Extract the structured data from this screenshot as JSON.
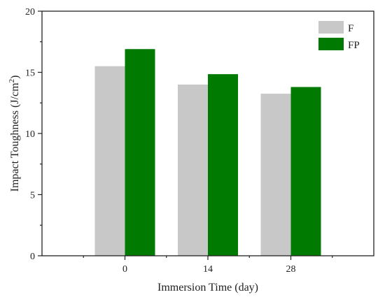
{
  "chart_data": {
    "type": "bar",
    "categories": [
      "0",
      "14",
      "28"
    ],
    "series": [
      {
        "name": "F",
        "values": [
          15.5,
          14.0,
          13.25
        ],
        "color": "#c8c8c8"
      },
      {
        "name": "FP",
        "values": [
          16.9,
          14.85,
          13.8
        ],
        "color": "#007a00"
      }
    ],
    "xlabel": "Immersion Time (day)",
    "ylabel": {
      "main": "Impact Toughness (J/cm",
      "sup": "2",
      "close": ")"
    },
    "ylim": [
      0,
      20
    ],
    "yticks": [
      "0",
      "5",
      "10",
      "15",
      "20"
    ],
    "grid": false,
    "legend_position": "top-right"
  }
}
